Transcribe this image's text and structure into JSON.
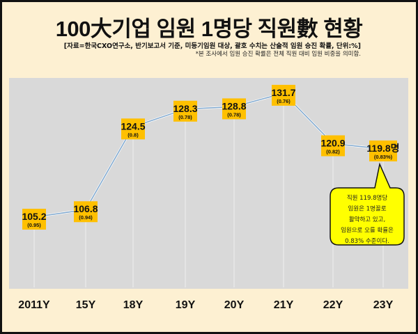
{
  "header": {
    "title": "100大기업 임원 1명당 직원數 현황",
    "source": "[자료=한국CXO연구소, 반기보고서 기준, 미등기임원 대상, 괄호 수치는 산술적 임원 승진 확률, 단위:%]",
    "note": "*본 조사에서 임원 승진 확률은 전체 직원 대비 임원 비중을 의미함."
  },
  "chart_data": {
    "type": "line",
    "categories": [
      "2011Y",
      "15Y",
      "18Y",
      "19Y",
      "20Y",
      "21Y",
      "22Y",
      "23Y"
    ],
    "series": [
      {
        "values": [
          105.2,
          106.8,
          124.5,
          128.3,
          128.8,
          131.7,
          120.9,
          119.8
        ]
      },
      {
        "values": [
          0.95,
          0.94,
          0.8,
          0.78,
          0.78,
          0.76,
          0.82,
          0.83
        ]
      }
    ],
    "value_labels": [
      "105.2",
      "106.8",
      "124.5",
      "128.3",
      "128.8",
      "131.7",
      "120.9",
      "119.8명"
    ],
    "paren_labels": [
      "(0.95)",
      "(0.94)",
      "(0.8)",
      "(0.78)",
      "(0.78)",
      "(0.76)",
      "(0.82)",
      "(0.83%)"
    ],
    "grid": false,
    "colors": {
      "line": "#7fa8cf",
      "label_box": "#ffc000",
      "plot_bg": "#d9d9d9",
      "page_bg": "#fdf0d2",
      "callout": "#ffff00"
    },
    "callout": [
      "직원 119.8명당",
      "임원은 1명꼴로",
      "활약하고  있고,",
      "임원으로 오를 확률은",
      "0.83% 수준이다."
    ]
  }
}
